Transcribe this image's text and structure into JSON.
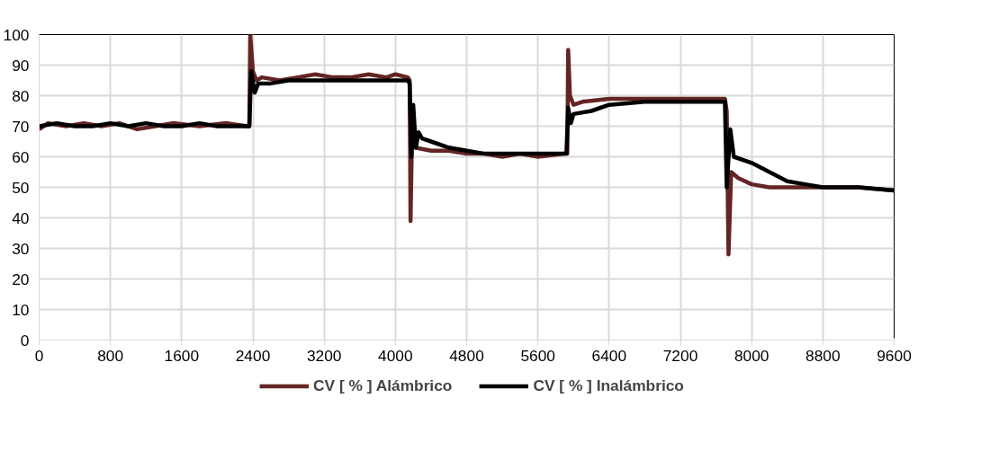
{
  "chart_data": {
    "type": "line",
    "xlim": [
      0,
      9600
    ],
    "xticks": [
      0,
      800,
      1600,
      2400,
      3200,
      4000,
      4800,
      5600,
      6400,
      7200,
      8000,
      8800,
      9600
    ],
    "ylim": [
      0,
      100
    ],
    "yticks": [
      0,
      10,
      20,
      30,
      40,
      50,
      60,
      70,
      80,
      90,
      100
    ],
    "grid": true,
    "legend": "bottom",
    "line_style": "solid",
    "marker": "none",
    "series": [
      {
        "name": "CV [ % ] Alámbrico",
        "color": "#632523",
        "x": [
          0,
          100,
          300,
          500,
          700,
          900,
          1100,
          1300,
          1500,
          1800,
          2100,
          2340,
          2360,
          2370,
          2400,
          2440,
          2500,
          2700,
          2900,
          3100,
          3300,
          3500,
          3700,
          3900,
          4000,
          4140,
          4160,
          4170,
          4185,
          4220,
          4400,
          4600,
          4800,
          5000,
          5200,
          5400,
          5600,
          5900,
          5930,
          5940,
          5960,
          6000,
          6100,
          6400,
          6800,
          7200,
          7600,
          7700,
          7720,
          7740,
          7770,
          7850,
          8000,
          8200,
          8500,
          8800,
          9200,
          9600
        ],
        "values": [
          69,
          71,
          70,
          71,
          70,
          71,
          69,
          70,
          71,
          70,
          71,
          70,
          70,
          100,
          88,
          85,
          86,
          85,
          86,
          87,
          86,
          86,
          87,
          86,
          87,
          86,
          85,
          39,
          65,
          63,
          62,
          62,
          61,
          61,
          60,
          61,
          60,
          61,
          61,
          95,
          80,
          77,
          78,
          79,
          79,
          79,
          79,
          79,
          75,
          28,
          55,
          53,
          51,
          50,
          50,
          50,
          50,
          49
        ]
      },
      {
        "name": "CV [ % ] Inalámbrico",
        "color": "#000000",
        "x": [
          0,
          200,
          400,
          600,
          800,
          1000,
          1200,
          1400,
          1600,
          1800,
          2000,
          2200,
          2360,
          2380,
          2420,
          2460,
          2600,
          2800,
          3200,
          3600,
          4000,
          4140,
          4160,
          4180,
          4200,
          4230,
          4260,
          4300,
          4400,
          4600,
          4800,
          5000,
          5200,
          5600,
          5920,
          5940,
          5970,
          6000,
          6200,
          6400,
          6800,
          7200,
          7700,
          7720,
          7760,
          7800,
          8000,
          8200,
          8400,
          8600,
          8800,
          9200,
          9600
        ],
        "values": [
          70,
          71,
          70,
          70,
          71,
          70,
          71,
          70,
          70,
          71,
          70,
          70,
          70,
          88,
          81,
          84,
          84,
          85,
          85,
          85,
          85,
          85,
          84,
          60,
          77,
          63,
          68,
          66,
          65,
          63,
          62,
          61,
          61,
          61,
          61,
          76,
          71,
          74,
          75,
          77,
          78,
          78,
          78,
          50,
          69,
          60,
          58,
          55,
          52,
          51,
          50,
          50,
          49
        ]
      }
    ]
  }
}
